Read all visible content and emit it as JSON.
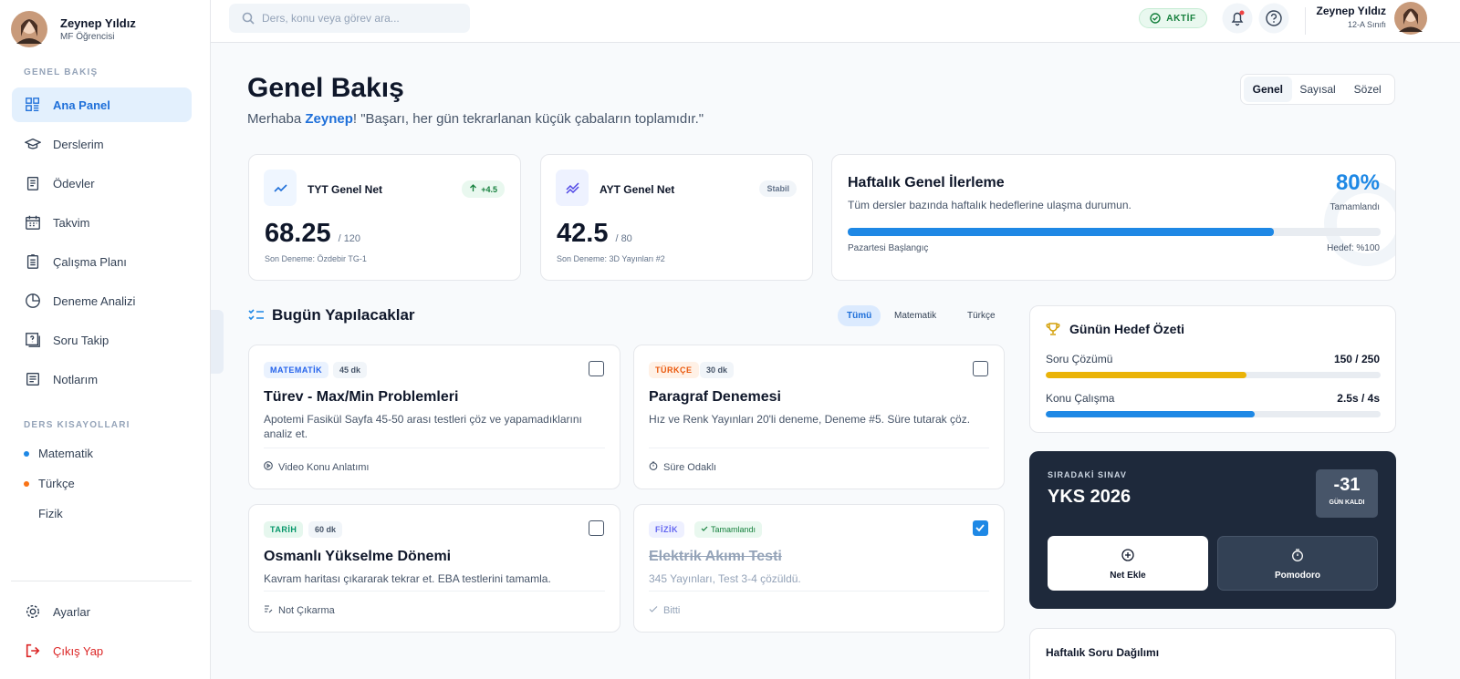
{
  "sidebar": {
    "user": {
      "name": "Zeynep Yıldız",
      "role": "MF Öğrencisi"
    },
    "nav_title": "GENEL BAKIŞ",
    "nav": [
      "Ana Panel",
      "Derslerim",
      "Ödevler",
      "Takvim",
      "Çalışma Planı",
      "Deneme Analizi",
      "Soru Takip",
      "Notlarım"
    ],
    "shortcuts_title": "DERS KISAYOLLARI",
    "shortcuts": [
      "Matematik",
      "Türkçe",
      "Fizik"
    ],
    "settings": "Ayarlar",
    "logout": "Çıkış Yap"
  },
  "header": {
    "search_placeholder": "Ders, konu veya görev ara...",
    "status": "AKTİF",
    "user_name": "Zeynep Yıldız",
    "user_class": "12-A Sınıfı"
  },
  "page": {
    "title": "Genel Bakış",
    "greeting": "Merhaba ",
    "greeting_name": "Zeynep",
    "quote": "! \"Başarı, her gün tekrarlanan küçük çabaların toplamıdır.\"",
    "tabs": [
      "Genel",
      "Sayısal",
      "Sözel"
    ]
  },
  "stats": [
    {
      "title": "TYT Genel Net",
      "badge": "+4.5",
      "value": "68.25",
      "total": "/ 120",
      "note": "Son Deneme: Özdebir TG-1"
    },
    {
      "title": "AYT Genel Net",
      "badge": "Stabil",
      "value": "42.5",
      "total": "/ 80",
      "note": "Son Deneme: 3D Yayınları #2"
    }
  ],
  "weekly_progress": {
    "title": "Haftalık Genel İlerleme",
    "description": "Tüm dersler bazında haftalık hedeflerine ulaşma durumun.",
    "percent": {
      "value": 80,
      "label": "80%"
    },
    "status": "Tamamlandı",
    "start": "Pazartesi Başlangıç",
    "target": "Hedef: %100"
  },
  "todo": {
    "title": "Bugün Yapılacaklar",
    "filters": [
      "Tümü",
      "Matematik",
      "Türkçe"
    ],
    "tasks": [
      {
        "subject": "MATEMATİK",
        "duration": "45 dk",
        "title": "Türev - Max/Min Problemleri",
        "description": "Apotemi Fasikül Sayfa 45-50 arası testleri çöz ve yapamadıklarını analiz et.",
        "footer": "Video Konu Anlatımı",
        "done": false
      },
      {
        "subject": "TÜRKÇE",
        "duration": "30 dk",
        "title": "Paragraf Denemesi",
        "description": "Hız ve Renk Yayınları 20'li deneme, Deneme #5. Süre tutarak çöz.",
        "footer": "Süre Odaklı",
        "done": false
      },
      {
        "subject": "TARİH",
        "duration": "60 dk",
        "title": "Osmanlı Yükselme Dönemi",
        "description": "Kavram haritası çıkararak tekrar et. EBA testlerini tamamla.",
        "footer": "Not Çıkarma",
        "done": false
      },
      {
        "subject": "FİZİK",
        "duration": "Tamamlandı",
        "title": "Elektrik Akımı Testi",
        "description": "345 Yayınları, Test 3-4 çözüldü.",
        "footer": "Bitti",
        "done": true
      }
    ]
  },
  "daily_goals": {
    "title": "Günün Hedef Özeti",
    "items": [
      {
        "name": "Soru Çözümü",
        "label": "150 / 250",
        "done": 150,
        "total": 250
      },
      {
        "name": "Konu Çalışma",
        "label": "2.5s / 4s",
        "done": 2.5,
        "total": 4
      }
    ]
  },
  "next_exam": {
    "label": "SIRADAKİ SINAV",
    "name": "YKS 2026",
    "countdown": "-31",
    "countdown_label": "GÜN KALDI",
    "actions": [
      "Net Ekle",
      "Pomodoro"
    ]
  },
  "weekly_questions": {
    "title": "Haftalık Soru Dağılımı"
  }
}
